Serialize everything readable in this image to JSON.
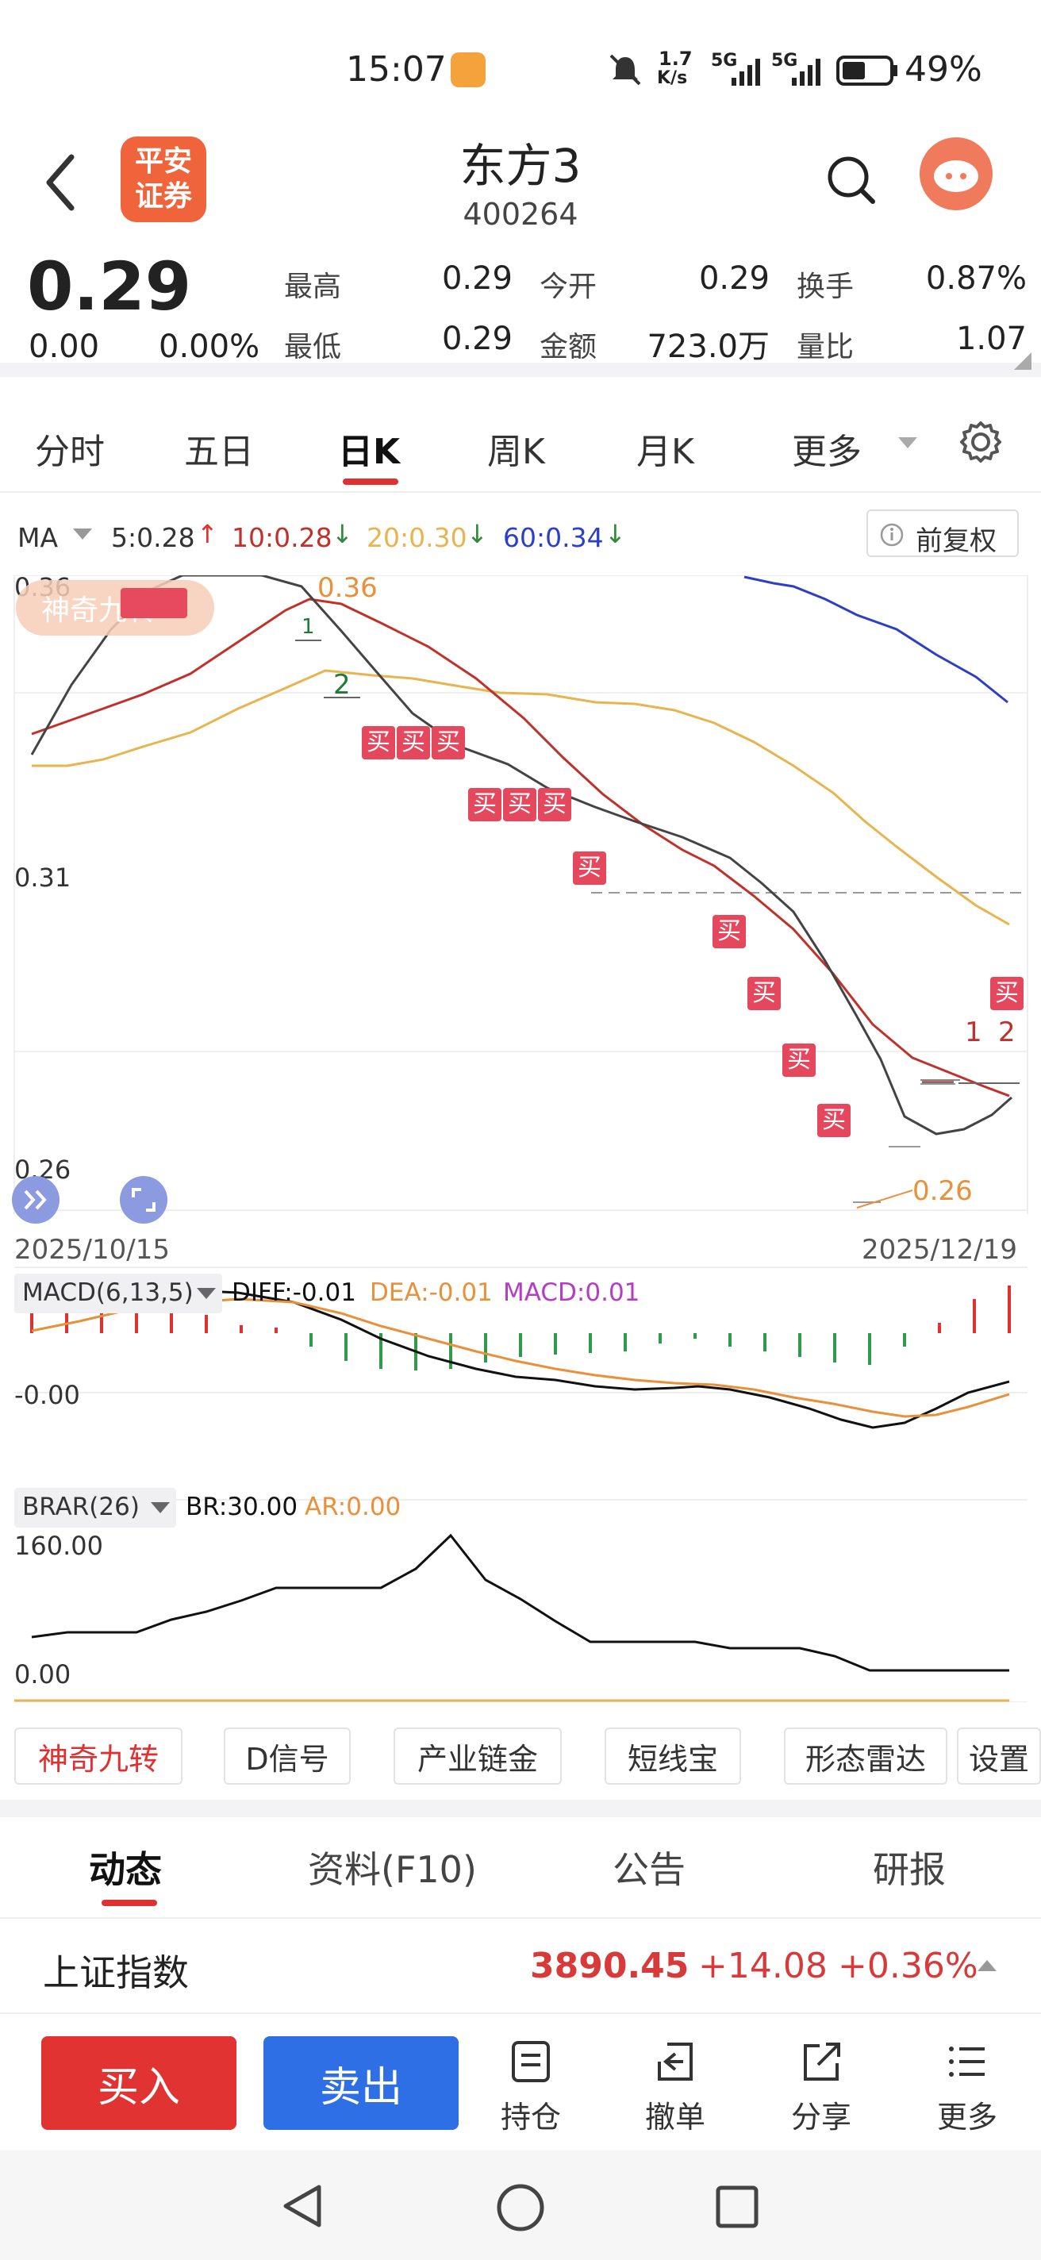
{
  "status": {
    "time": "15:07",
    "net_speed_top": "1.7",
    "net_speed_bottom": "K/s",
    "sig1": "5G",
    "sig2": "5G",
    "battery": "49%"
  },
  "header": {
    "logo_line1": "平安",
    "logo_line2": "证券",
    "stock_name": "东方3",
    "stock_code": "400264"
  },
  "quote": {
    "price": "0.29",
    "change": "0.00",
    "change_pct": "0.00%",
    "high_label": "最高",
    "high": "0.29",
    "open_label": "今开",
    "open": "0.29",
    "turnover_label": "换手",
    "turnover": "0.87%",
    "low_label": "最低",
    "low": "0.29",
    "amount_label": "金额",
    "amount": "723.0万",
    "vol_ratio_label": "量比",
    "vol_ratio": "1.07"
  },
  "tabs": {
    "t1": "分时",
    "t2": "五日",
    "t3": "日K",
    "t4": "周K",
    "t5": "月K",
    "t6": "更多",
    "active": "日K"
  },
  "ma": {
    "label": "MA",
    "ma5": "5:0.28",
    "ma10": "10:0.28",
    "ma20": "20:0.30",
    "ma60": "60:0.34",
    "adjust": "前复权",
    "c5": "#333333",
    "c10": "#c0312b",
    "c20": "#e7b450",
    "c60": "#2c3fc6"
  },
  "kchart": {
    "y_top": "0.36",
    "y_mid": "0.31",
    "y_bot": "0.26",
    "hi_label": "0.36",
    "lo_label": "0.26",
    "badge": "神奇九转",
    "date_start": "2025/10/15",
    "date_end": "2025/12/19",
    "buy": "买",
    "n1": "1",
    "n2": "2",
    "tail1": "1",
    "tail2": "2"
  },
  "macd": {
    "label": "MACD(6,13,5)",
    "diff": "DIFF:-0.01",
    "dea": "DEA:-0.01",
    "macd": "MACD:0.01",
    "zero": "-0.00"
  },
  "brar": {
    "label": "BRAR(26)",
    "br": "BR:30.00",
    "ar": "AR:0.00",
    "top": "160.00",
    "bottom": "0.00"
  },
  "tools": {
    "b1": "神奇九转",
    "b2": "D信号",
    "b3": "产业链金",
    "b4": "短线宝",
    "b5": "形态雷达",
    "b6": "设置"
  },
  "subtabs": {
    "s1": "动态",
    "s2": "资料(F10)",
    "s3": "公告",
    "s4": "研报"
  },
  "index": {
    "name": "上证指数",
    "value": "3890.45",
    "change": "+14.08",
    "pct": "+0.36%"
  },
  "bottom": {
    "buy": "买入",
    "sell": "卖出",
    "pos": "持仓",
    "cancel": "撤单",
    "share": "分享",
    "more": "更多"
  }
}
